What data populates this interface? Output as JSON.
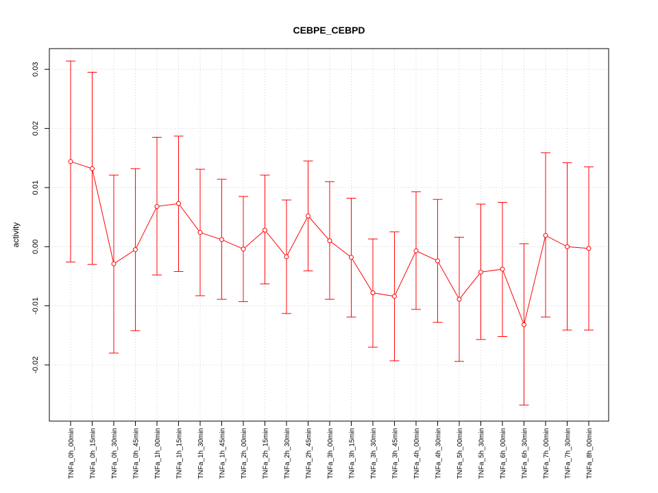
{
  "chart_data": {
    "type": "line",
    "title": "CEBPE_CEBPD",
    "xlabel": "",
    "ylabel": "activity",
    "ylim": [
      -0.0295,
      0.0335
    ],
    "y_ticks": [
      -0.02,
      -0.01,
      0.0,
      0.01,
      0.02,
      0.03
    ],
    "y_tick_labels": [
      "-0.02",
      "-0.01",
      "0.00",
      "0.01",
      "0.02",
      "0.03"
    ],
    "grid": true,
    "colors": {
      "series": "#ff0000",
      "grid": "#cccccc",
      "axis": "#000000"
    },
    "categories": [
      "TNFa_0h_00min",
      "TNFa_0h_15min",
      "TNFa_0h_30min",
      "TNFa_0h_45min",
      "TNFa_1h_00min",
      "TNFa_1h_15min",
      "TNFa_1h_30min",
      "TNFa_1h_45min",
      "TNFa_2h_00min",
      "TNFa_2h_15min",
      "TNFa_2h_30min",
      "TNFa_2h_45min",
      "TNFa_3h_00min",
      "TNFa_3h_15min",
      "TNFa_3h_30min",
      "TNFa_3h_45min",
      "TNFa_4h_00min",
      "TNFa_4h_30min",
      "TNFa_5h_00min",
      "TNFa_5h_30min",
      "TNFa_6h_00min",
      "TNFa_6h_30min",
      "TNFa_7h_00min",
      "TNFa_7h_30min",
      "TNFa_8h_00min"
    ],
    "series": [
      {
        "values": [
          0.0144,
          0.0132,
          -0.0029,
          -0.0005,
          0.0068,
          0.0073,
          0.0024,
          0.0012,
          -0.0004,
          0.0028,
          -0.0017,
          0.0052,
          0.001,
          -0.0018,
          -0.0078,
          -0.0084,
          -0.0007,
          -0.0024,
          -0.0089,
          -0.0043,
          -0.0038,
          -0.0132,
          0.0019,
          0.0,
          -0.0003
        ],
        "upper": [
          0.0314,
          0.0295,
          0.0121,
          0.0132,
          0.0185,
          0.0187,
          0.0131,
          0.0114,
          0.0085,
          0.0121,
          0.0079,
          0.0145,
          0.011,
          0.0082,
          0.0013,
          0.0025,
          0.0093,
          0.008,
          0.0016,
          0.0072,
          0.0075,
          0.0005,
          0.0159,
          0.0142,
          0.0135
        ],
        "lower": [
          -0.0026,
          -0.003,
          -0.018,
          -0.0142,
          -0.0048,
          -0.0042,
          -0.0083,
          -0.0089,
          -0.0093,
          -0.0063,
          -0.0113,
          -0.0041,
          -0.0089,
          -0.0119,
          -0.017,
          -0.0193,
          -0.0106,
          -0.0128,
          -0.0194,
          -0.0157,
          -0.0152,
          -0.0268,
          -0.0119,
          -0.0141,
          -0.0141
        ]
      }
    ]
  }
}
